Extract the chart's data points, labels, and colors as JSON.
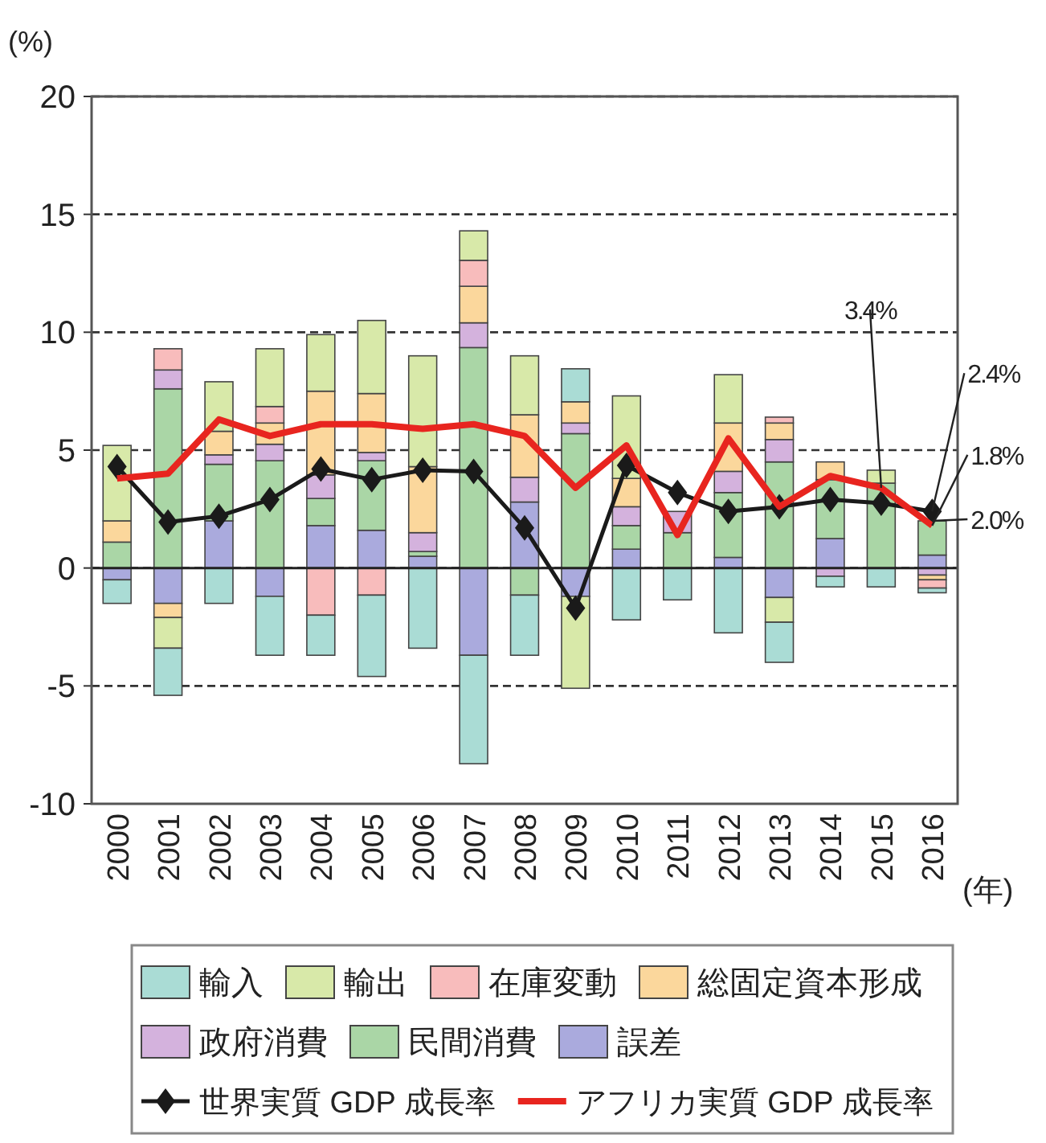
{
  "chart_data": {
    "type": "bar",
    "stacked": true,
    "ylabel": "(%)",
    "xlabel": "(年)",
    "categories": [
      "2000",
      "2001",
      "2002",
      "2003",
      "2004",
      "2005",
      "2006",
      "2007",
      "2008",
      "2009",
      "2010",
      "2011",
      "2012",
      "2013",
      "2014",
      "2015",
      "2016"
    ],
    "ylim": [
      -10,
      20
    ],
    "yticks": [
      -10,
      -5,
      0,
      5,
      10,
      15,
      20
    ],
    "grid": "y",
    "legend": "bottom",
    "ref_lines": [
      {
        "axis": "y",
        "value": 0,
        "color": "#222222",
        "line_style": "solid"
      }
    ],
    "series": [
      {
        "name": "誤差",
        "color": "#aaaadd",
        "values": [
          -0.5,
          -1.5,
          2.0,
          -1.2,
          1.8,
          1.6,
          0.5,
          -3.7,
          2.8,
          -1.2,
          0.8,
          0,
          0.45,
          -1.25,
          1.25,
          0,
          0.55
        ]
      },
      {
        "name": "民間消費",
        "color": "#aad6a6",
        "values": [
          1.1,
          7.6,
          2.4,
          4.55,
          1.15,
          2.95,
          0.2,
          9.35,
          -1.15,
          5.7,
          1.0,
          1.5,
          2.75,
          4.5,
          2.5,
          3.6,
          1.45
        ]
      },
      {
        "name": "政府消費",
        "color": "#d4b2dd",
        "values": [
          0,
          0.8,
          0.4,
          0.7,
          1.0,
          0.35,
          0.8,
          1.05,
          1.05,
          0.45,
          0.8,
          0.9,
          0.9,
          0.95,
          -0.35,
          0,
          -0.3
        ]
      },
      {
        "name": "総固定資本形成",
        "color": "#fbd79c",
        "values": [
          0.9,
          -0.6,
          1.0,
          0.9,
          3.55,
          2.5,
          2.8,
          1.55,
          2.65,
          0.9,
          1.2,
          0,
          2.05,
          0.7,
          0.75,
          0,
          -0.2
        ]
      },
      {
        "name": "在庫変動",
        "color": "#f8bcbc",
        "values": [
          0,
          0.9,
          0,
          0.7,
          -2.0,
          -1.15,
          0,
          1.1,
          0,
          0,
          0,
          0,
          0,
          0.25,
          0,
          0,
          -0.35
        ]
      },
      {
        "name": "輸出",
        "color": "#d8e9a9",
        "values": [
          3.2,
          -1.3,
          2.1,
          2.45,
          2.4,
          3.1,
          4.7,
          1.25,
          2.5,
          -3.9,
          3.5,
          0,
          2.05,
          -1.05,
          0,
          0.55,
          0
        ]
      },
      {
        "name": "輸入",
        "color": "#aadcd5",
        "values": [
          -1.0,
          -2.0,
          -1.5,
          -2.5,
          -1.7,
          -3.45,
          -3.4,
          -4.6,
          -2.55,
          1.4,
          -2.2,
          -1.35,
          -2.75,
          -1.7,
          -0.45,
          -0.8,
          -0.2
        ]
      },
      {
        "name": "世界実質 GDP 成長率",
        "type": "line",
        "color": "#1a1a1a",
        "marker": "diamond",
        "values": [
          4.3,
          1.95,
          2.2,
          2.9,
          4.2,
          3.75,
          4.15,
          4.1,
          1.7,
          -1.7,
          4.35,
          3.2,
          2.4,
          2.6,
          2.9,
          2.75,
          2.4
        ]
      },
      {
        "name": "アフリカ実質 GDP 成長率",
        "type": "line",
        "color": "#e8251f",
        "values": [
          3.8,
          4.0,
          6.3,
          5.6,
          6.1,
          6.1,
          5.9,
          6.1,
          5.6,
          3.4,
          5.2,
          1.4,
          5.5,
          2.6,
          3.9,
          3.4,
          1.8
        ]
      }
    ],
    "annotations": [
      {
        "text": "3.4%",
        "x": "2015",
        "y": 3.4
      },
      {
        "text": "2.4%",
        "x": "2016",
        "y": 2.4
      },
      {
        "text": "1.8%",
        "x": "2016",
        "y": 1.8
      },
      {
        "text": "2.0%",
        "x": "2016",
        "y": 2.0
      }
    ]
  }
}
